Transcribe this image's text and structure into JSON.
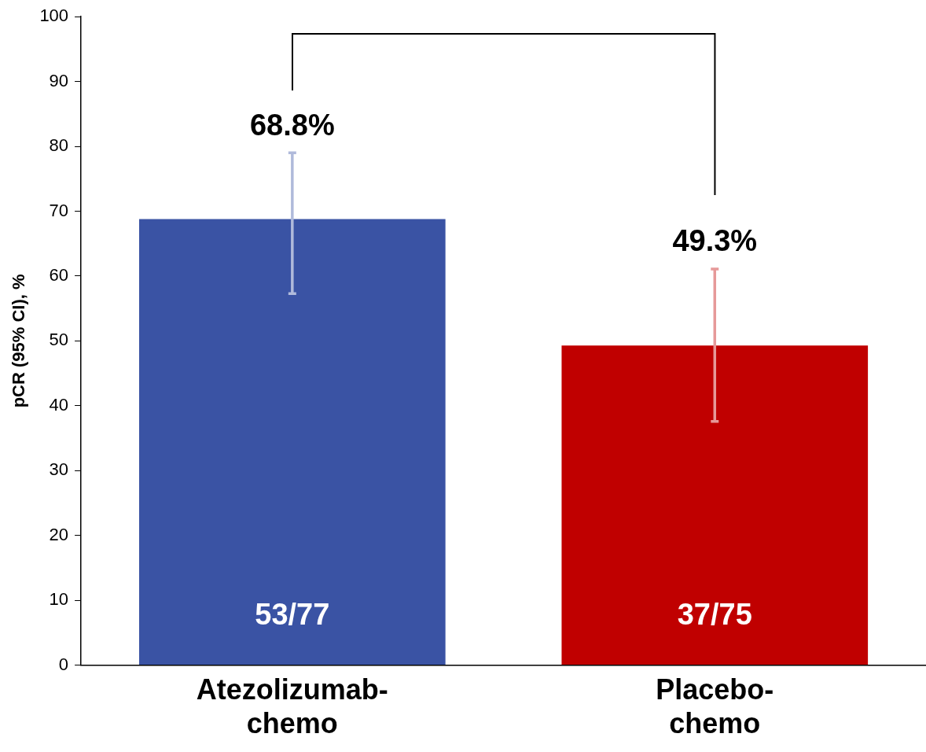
{
  "chart_data": {
    "type": "bar",
    "ylabel": "pCR (95% CI), %",
    "categories": [
      "Atezolizumab-chemo",
      "Placebo-chemo"
    ],
    "values": [
      68.8,
      49.3
    ],
    "colors": [
      "#3a53a4",
      "#c00000"
    ],
    "errors": [
      [
        57.3,
        79.0
      ],
      [
        37.6,
        61.1
      ]
    ],
    "value_labels": [
      "68.8%",
      "49.3%"
    ],
    "annotations": [
      "53/77",
      "37/75"
    ],
    "ylim": [
      0,
      100
    ],
    "yticks": [
      0,
      10,
      20,
      30,
      40,
      50,
      60,
      70,
      80,
      90,
      100
    ],
    "grid": false,
    "legend": false
  }
}
